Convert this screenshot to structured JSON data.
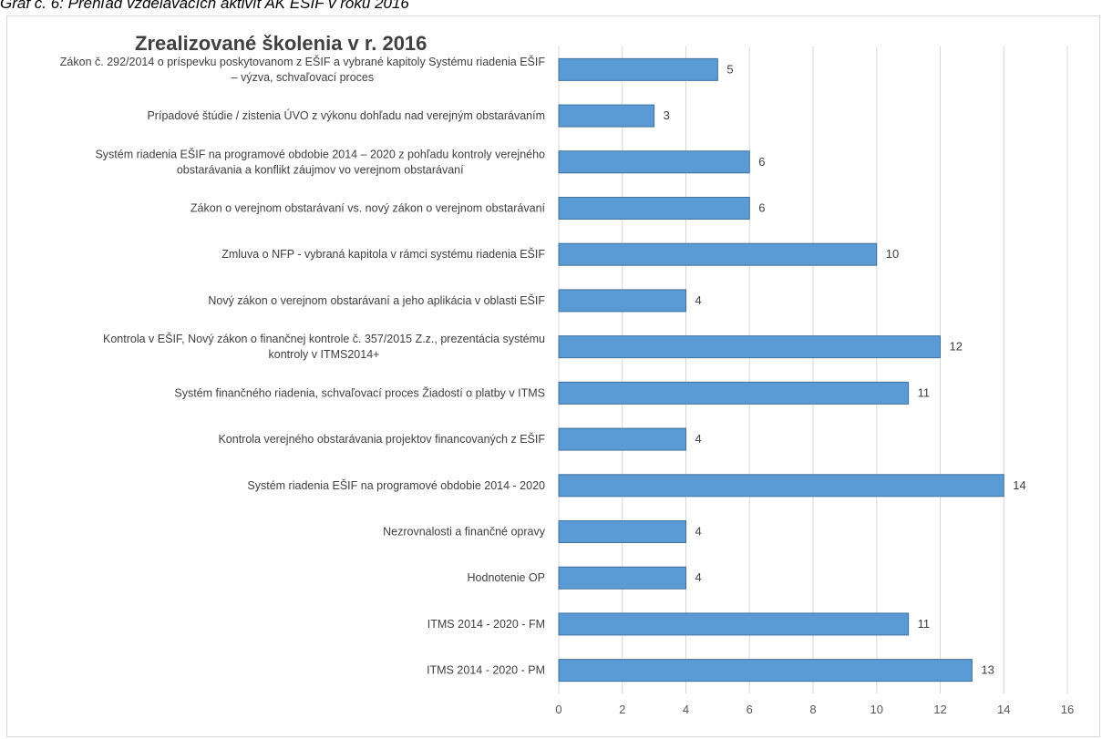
{
  "caption": "Graf č. 6: Prehľad vzdelávacích aktivít AK EŠIF v roku 2016",
  "chart_data": {
    "type": "bar",
    "orientation": "horizontal",
    "title": "Zrealizované školenia  v r. 2016",
    "xlabel": "",
    "ylabel": "",
    "xlim": [
      0,
      16
    ],
    "x_ticks": [
      0,
      2,
      4,
      6,
      8,
      10,
      12,
      14,
      16
    ],
    "grid": "vertical",
    "bar_color": "#5b9bd5",
    "categories": [
      [
        "Zákon č. 292/2014 o príspevku poskytovanom z EŠIF a vybrané kapitoly Systému riadenia EŠIF",
        "– výzva, schvaľovací proces"
      ],
      [
        "Prípadové štúdie / zistenia ÚVO z výkonu dohľadu nad verejným obstarávaním"
      ],
      [
        "Systém riadenia EŠIF na programové obdobie 2014 – 2020 z pohľadu kontroly verejného",
        "obstarávania a konflikt záujmov vo verejnom obstarávaní"
      ],
      [
        "Zákon o verejnom obstarávaní vs. nový zákon o verejnom obstarávaní"
      ],
      [
        "Zmluva o NFP - vybraná kapitola v rámci systému riadenia EŠIF"
      ],
      [
        "Nový zákon o verejnom obstarávaní a jeho aplikácia v oblasti EŠIF"
      ],
      [
        "Kontrola v EŠIF, Nový zákon o finančnej kontrole č. 357/2015 Z.z., prezentácia systému",
        "kontroly v ITMS2014+"
      ],
      [
        "Systém finančného riadenia, schvaľovací proces Žiadostí o platby v ITMS"
      ],
      [
        "Kontrola verejného obstarávania projektov financovaných z EŠIF"
      ],
      [
        "Systém riadenia EŠIF na programové obdobie 2014 - 2020"
      ],
      [
        "Nezrovnalosti a finančné opravy"
      ],
      [
        "Hodnotenie OP"
      ],
      [
        "ITMS 2014 - 2020 - FM"
      ],
      [
        "ITMS 2014 - 2020 - PM"
      ]
    ],
    "values": [
      5,
      3,
      6,
      6,
      10,
      4,
      12,
      11,
      4,
      14,
      4,
      4,
      11,
      13
    ]
  }
}
